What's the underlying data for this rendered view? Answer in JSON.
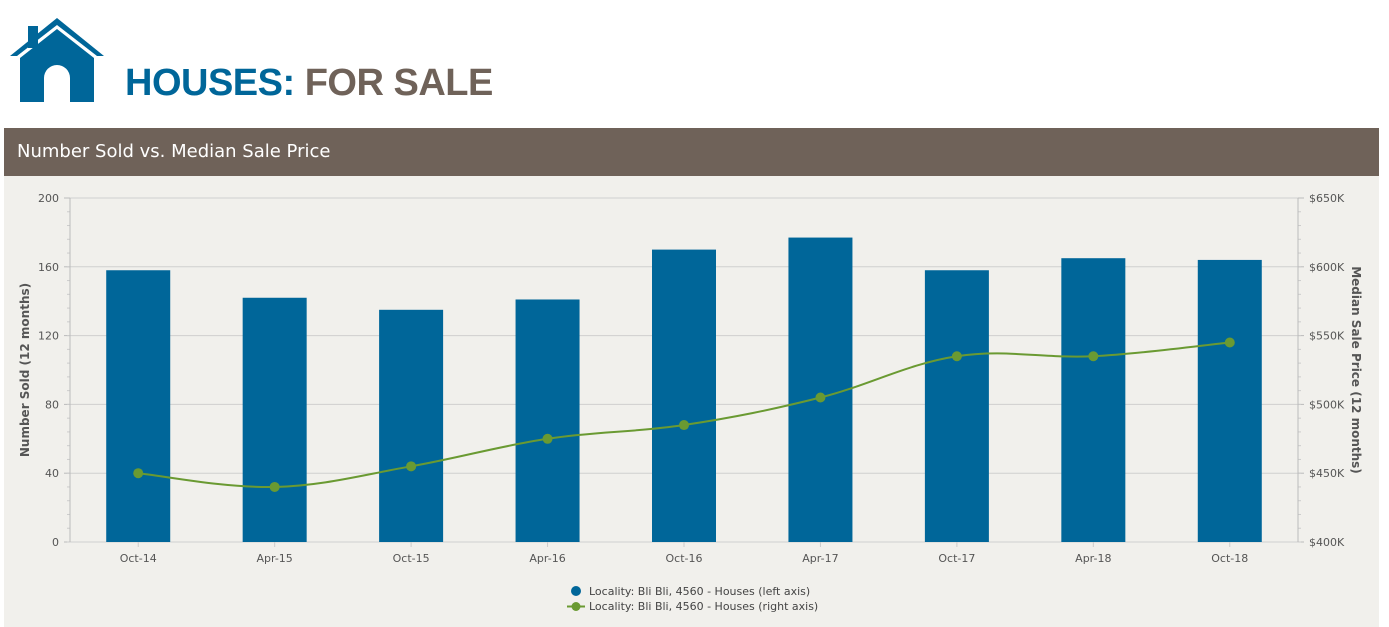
{
  "header": {
    "logo_icon": "house-icon",
    "title_part1": "HOUSES:",
    "title_part2": "FOR SALE",
    "colors": {
      "primary": "#006699",
      "secondary": "#6f6259"
    }
  },
  "panel": {
    "title": "Number Sold vs. Median Sale Price"
  },
  "chart_data": {
    "type": "bar",
    "categories": [
      "Oct-14",
      "Apr-15",
      "Oct-15",
      "Apr-16",
      "Oct-16",
      "Apr-17",
      "Oct-17",
      "Apr-18",
      "Oct-18"
    ],
    "series": [
      {
        "name": "Locality: Bli Bli, 4560 - Houses (left axis)",
        "type": "bar",
        "axis": "left",
        "color": "#006699",
        "values": [
          158,
          142,
          135,
          141,
          170,
          177,
          158,
          165,
          164
        ]
      },
      {
        "name": "Locality: Bli Bli, 4560 - Houses (right axis)",
        "type": "line",
        "axis": "right",
        "color": "#6a9a32",
        "values": [
          450000,
          440000,
          455000,
          475000,
          485000,
          505000,
          535000,
          535000,
          545000
        ]
      }
    ],
    "ylabel": "Number Sold (12 months)",
    "y2label": "Median Sale Price (12 months)",
    "ylim": [
      0,
      200
    ],
    "y2lim": [
      400000,
      650000
    ],
    "yticks": [
      "0",
      "40",
      "80",
      "120",
      "160",
      "200"
    ],
    "y2ticks": [
      "$400K",
      "$450K",
      "$500K",
      "$550K",
      "$600K",
      "$650K"
    ],
    "grid": true,
    "legend_position": "bottom-center"
  }
}
